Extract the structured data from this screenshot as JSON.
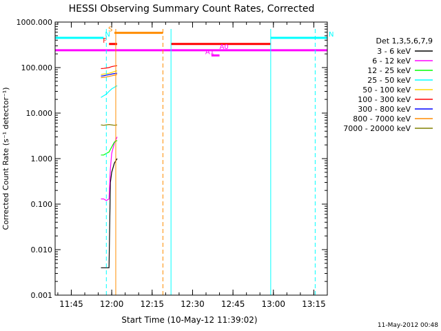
{
  "chart_data": {
    "type": "line",
    "title": "HESSI Observing Summary Count Rates, Corrected",
    "xlabel": "Start Time (10-May-12 11:39:02)",
    "ylabel": "Corrected Count Rate (s⁻¹ detector⁻¹)",
    "yscale": "log",
    "ylim": [
      0.001,
      1000
    ],
    "xlim": [
      "11:39",
      "13:20"
    ],
    "x_ticks": [
      "11:45",
      "12:00",
      "12:15",
      "12:30",
      "12:45",
      "13:00",
      "13:15"
    ],
    "y_ticks": [
      "0.001",
      "0.010",
      "0.100",
      "1.000",
      "10.000",
      "100.000",
      "1000.000"
    ],
    "legend_title": "Det 1,3,5,6,7,9",
    "legend_position": "right",
    "series": [
      {
        "name": "3 - 6 keV",
        "color": "#000000",
        "x": [
          "11:56",
          "11:57",
          "11:58",
          "11:59",
          "11:59.5",
          "12:00",
          "12:01",
          "12:02"
        ],
        "y": [
          0.004,
          0.004,
          0.004,
          0.004,
          0.3,
          0.5,
          0.8,
          1.0
        ]
      },
      {
        "name": "6 - 12 keV",
        "color": "#ff00ff",
        "x": [
          "11:56",
          "11:57",
          "11:58",
          "11:59",
          "11:59.5",
          "12:00",
          "12:01",
          "12:02"
        ],
        "y": [
          0.13,
          0.13,
          0.12,
          0.13,
          0.6,
          1.3,
          2.2,
          3.0
        ]
      },
      {
        "name": "12 - 25 keV",
        "color": "#00ff00",
        "x": [
          "11:56",
          "11:57",
          "11:58",
          "11:59",
          "12:00",
          "12:01",
          "12:02"
        ],
        "y": [
          1.2,
          1.2,
          1.3,
          1.4,
          1.8,
          2.3,
          2.5
        ]
      },
      {
        "name": "25 - 50 keV",
        "color": "#00ffff",
        "x": [
          "11:56",
          "11:57",
          "11:58",
          "11:59",
          "12:00",
          "12:01",
          "12:02"
        ],
        "y": [
          22,
          24,
          26,
          30,
          34,
          37,
          40
        ]
      },
      {
        "name": "50 - 100 keV",
        "color": "#ffd700",
        "x": [
          "11:56",
          "11:57",
          "11:58",
          "11:59",
          "12:00",
          "12:01",
          "12:02"
        ],
        "y": [
          70,
          72,
          73,
          75,
          78,
          82,
          85
        ]
      },
      {
        "name": "100 - 300 keV",
        "color": "#ff0000",
        "x": [
          "11:56",
          "11:57",
          "11:58",
          "11:59",
          "12:00",
          "12:01",
          "12:02"
        ],
        "y": [
          95,
          96,
          98,
          100,
          105,
          108,
          110
        ]
      },
      {
        "name": "300 - 800 keV",
        "color": "#0000ff",
        "x": [
          "11:56",
          "11:57",
          "11:58",
          "11:59",
          "12:00",
          "12:01",
          "12:02"
        ],
        "y": [
          65,
          66,
          68,
          70,
          72,
          74,
          75
        ]
      },
      {
        "name": "800 - 7000 keV",
        "color": "#ff8c00",
        "x": [
          "11:56",
          "11:57",
          "11:58",
          "11:59",
          "12:00",
          "12:01",
          "12:02"
        ],
        "y": [
          60,
          61,
          62,
          64,
          66,
          68,
          70
        ]
      },
      {
        "name": "7000 - 20000 keV",
        "color": "#808000",
        "x": [
          "11:56",
          "11:57",
          "11:58",
          "11:59",
          "12:00",
          "12:01",
          "12:02"
        ],
        "y": [
          5.5,
          5.4,
          5.5,
          5.6,
          5.5,
          5.4,
          5.5
        ]
      }
    ],
    "flag_bars": [
      {
        "label": "N",
        "color": "#00ffff",
        "from": "11:39",
        "to": "11:57",
        "y": 450
      },
      {
        "label": "N",
        "color": "#00ffff",
        "from": "12:59",
        "to": "13:20",
        "y": 450
      },
      {
        "label": "S",
        "color": "#ff8c00",
        "from": "12:01",
        "to": "12:19",
        "y": 580
      },
      {
        "label": "F",
        "color": "#ff0000",
        "from": "11:59",
        "to": "12:02",
        "y": 330
      },
      {
        "label": "",
        "color": "#ff0000",
        "from": "12:22",
        "to": "12:59",
        "y": 330
      },
      {
        "label": "A0",
        "color": "#ff00ff",
        "from": "11:39",
        "to": "13:20",
        "y": 240
      },
      {
        "label": "A1",
        "color": "#ff00ff",
        "from": "12:37",
        "to": "12:40",
        "y": 185
      }
    ]
  },
  "footer": {
    "stamp": "11-May-2012 00:48"
  }
}
